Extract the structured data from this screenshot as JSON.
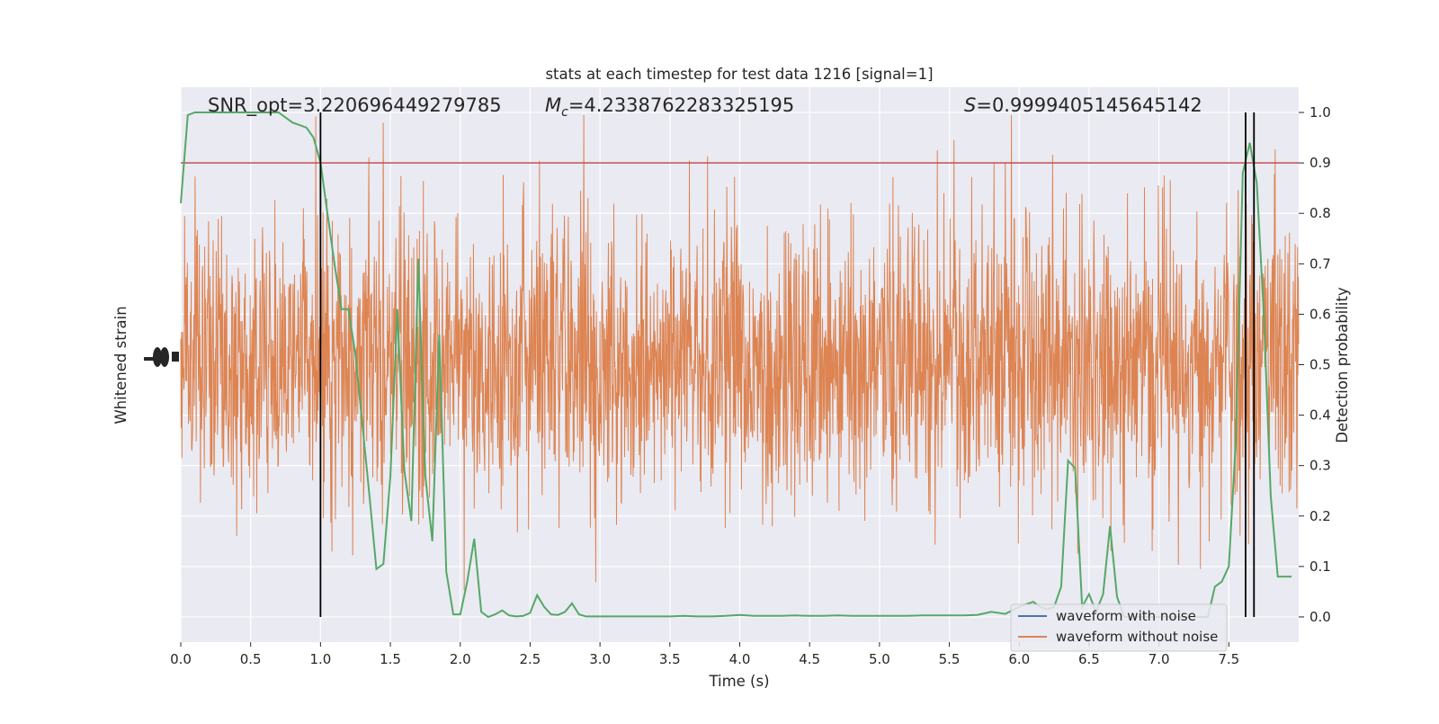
{
  "chart_data": {
    "type": "line",
    "title": "stats at each timestep for test data 1216 [signal=1]",
    "xlabel": "Time (s)",
    "ylabel_left": "Whitened strain",
    "ylabel_right": "Detection probability",
    "xlim": [
      0.0,
      8.0
    ],
    "ylim_right": [
      -0.05,
      1.05
    ],
    "x_ticks": [
      "0.0",
      "0.5",
      "1.0",
      "1.5",
      "2.0",
      "2.5",
      "3.0",
      "3.5",
      "4.0",
      "4.5",
      "5.0",
      "5.5",
      "6.0",
      "6.5",
      "7.0",
      "7.5"
    ],
    "x_tick_values": [
      0,
      0.5,
      1,
      1.5,
      2,
      2.5,
      3,
      3.5,
      4,
      4.5,
      5,
      5.5,
      6,
      6.5,
      7,
      7.5
    ],
    "y_right_ticks": [
      "0.0",
      "0.1",
      "0.2",
      "0.3",
      "0.4",
      "0.5",
      "0.6",
      "0.7",
      "0.8",
      "0.9",
      "1.0"
    ],
    "y_right_tick_values": [
      0,
      0.1,
      0.2,
      0.3,
      0.4,
      0.5,
      0.6,
      0.7,
      0.8,
      0.9,
      1.0
    ],
    "annotations": {
      "snr": "SNR_opt=3.220696449279785",
      "mc_symbol": "M",
      "mc_sub": "c",
      "mc_value": "=4.2338762283325195",
      "s_symbol": "S",
      "s_value": "=0.9999405145645142"
    },
    "threshold": 0.9,
    "vertical_lines_x": [
      1.0,
      7.62,
      7.68
    ],
    "legend": {
      "placement": "lower-right",
      "entries": [
        {
          "label": "waveform with noise",
          "color": "#4c72b0"
        },
        {
          "label": "waveform without noise",
          "color": "#dd8452"
        }
      ]
    },
    "series": [
      {
        "name": "detection probability",
        "color": "#55a868",
        "x": [
          0.0,
          0.05,
          0.1,
          0.2,
          0.3,
          0.4,
          0.5,
          0.6,
          0.7,
          0.75,
          0.8,
          0.85,
          0.9,
          0.95,
          1.0,
          1.05,
          1.1,
          1.15,
          1.2,
          1.25,
          1.3,
          1.35,
          1.4,
          1.45,
          1.5,
          1.55,
          1.6,
          1.65,
          1.7,
          1.75,
          1.8,
          1.85,
          1.9,
          1.95,
          2.0,
          2.05,
          2.1,
          2.15,
          2.2,
          2.25,
          2.3,
          2.35,
          2.4,
          2.45,
          2.5,
          2.55,
          2.6,
          2.65,
          2.7,
          2.75,
          2.8,
          2.85,
          2.9,
          2.95,
          3.0,
          3.05,
          3.1,
          3.15,
          3.2,
          3.25,
          3.3,
          3.35,
          3.4,
          3.45,
          3.5,
          3.6,
          3.7,
          3.8,
          3.9,
          4.0,
          4.1,
          4.2,
          4.3,
          4.4,
          4.5,
          4.6,
          4.7,
          4.8,
          4.9,
          5.0,
          5.1,
          5.2,
          5.3,
          5.4,
          5.5,
          5.6,
          5.7,
          5.8,
          5.9,
          6.0,
          6.1,
          6.15,
          6.2,
          6.25,
          6.3,
          6.35,
          6.4,
          6.45,
          6.5,
          6.55,
          6.6,
          6.65,
          6.7,
          6.75,
          6.8,
          6.85,
          6.9,
          6.95,
          7.0,
          7.05,
          7.1,
          7.15,
          7.2,
          7.25,
          7.3,
          7.35,
          7.4,
          7.45,
          7.5,
          7.55,
          7.6,
          7.65,
          7.7,
          7.75,
          7.8,
          7.85,
          7.9,
          7.95
        ],
        "y": [
          0.82,
          0.995,
          1.0,
          1.0,
          1.0,
          1.0,
          1.0,
          1.0,
          1.0,
          0.99,
          0.98,
          0.975,
          0.97,
          0.95,
          0.9,
          0.8,
          0.7,
          0.61,
          0.61,
          0.52,
          0.38,
          0.24,
          0.095,
          0.105,
          0.28,
          0.61,
          0.29,
          0.19,
          0.71,
          0.28,
          0.15,
          0.56,
          0.09,
          0.005,
          0.005,
          0.07,
          0.155,
          0.01,
          0.0,
          0.005,
          0.013,
          0.003,
          0.001,
          0.002,
          0.008,
          0.043,
          0.02,
          0.005,
          0.004,
          0.01,
          0.027,
          0.005,
          0.001,
          0.001,
          0.001,
          0.001,
          0.001,
          0.001,
          0.001,
          0.001,
          0.001,
          0.001,
          0.001,
          0.001,
          0.001,
          0.002,
          0.001,
          0.001,
          0.002,
          0.004,
          0.002,
          0.002,
          0.002,
          0.003,
          0.002,
          0.002,
          0.003,
          0.002,
          0.002,
          0.002,
          0.002,
          0.002,
          0.003,
          0.003,
          0.003,
          0.003,
          0.004,
          0.01,
          0.006,
          0.02,
          0.03,
          0.02,
          0.015,
          0.02,
          0.06,
          0.31,
          0.295,
          0.02,
          0.045,
          0.01,
          0.045,
          0.18,
          0.04,
          0.0,
          0.0,
          0.0,
          0.0,
          0.0,
          0.0,
          0.0,
          0.0,
          0.0,
          0.0,
          0.0,
          0.0,
          0.0,
          0.06,
          0.07,
          0.1,
          0.35,
          0.88,
          0.94,
          0.86,
          0.6,
          0.24,
          0.08,
          0.08,
          0.08
        ]
      }
    ]
  }
}
